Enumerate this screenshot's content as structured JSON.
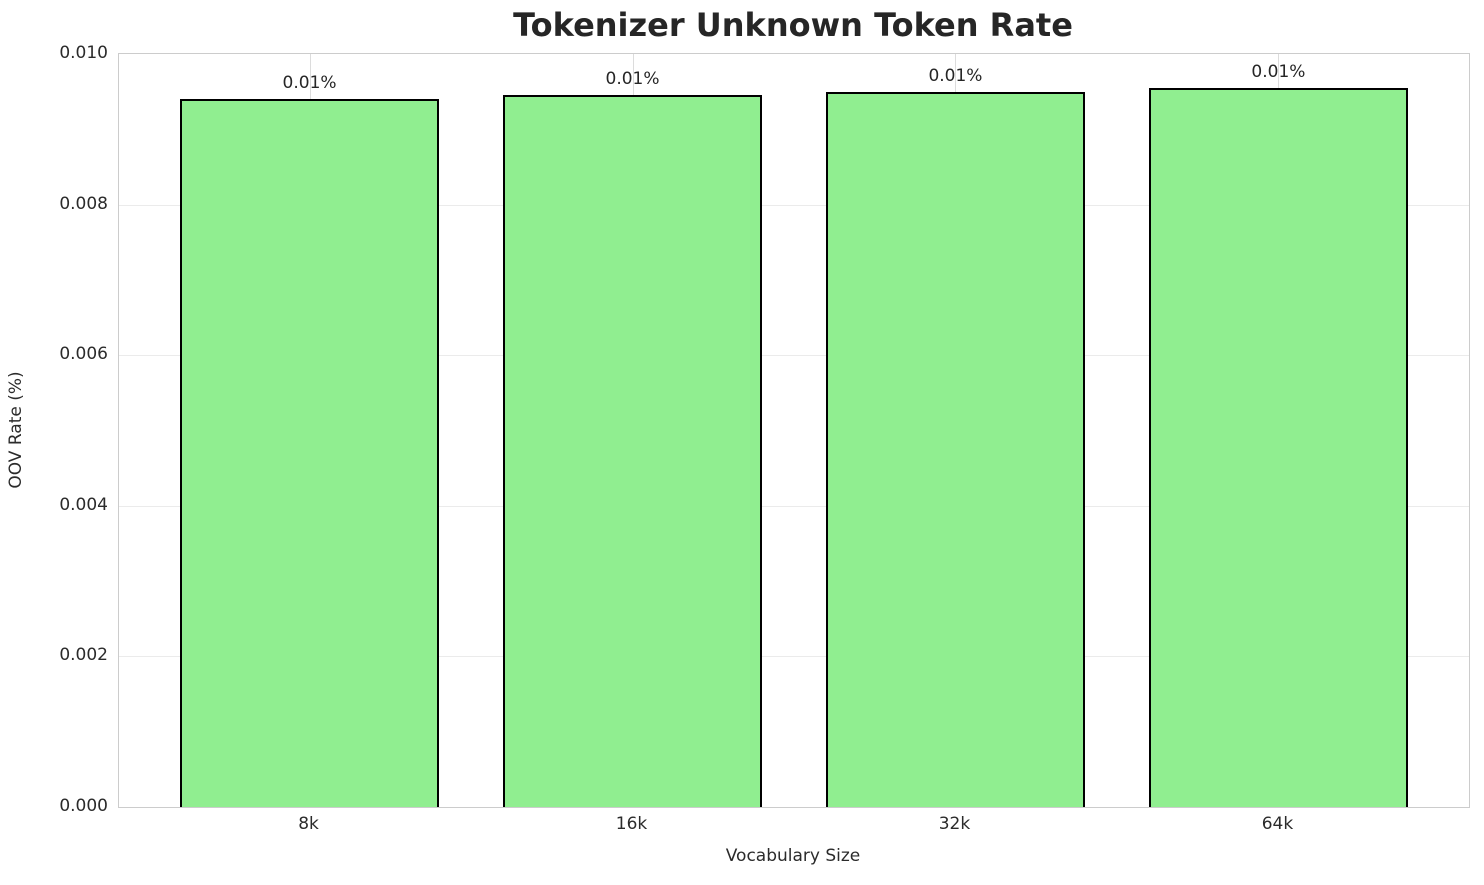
{
  "chart_data": {
    "type": "bar",
    "title": "Tokenizer Unknown Token Rate",
    "xlabel": "Vocabulary Size",
    "ylabel": "OOV Rate (%)",
    "categories": [
      "8k",
      "16k",
      "32k",
      "64k"
    ],
    "values": [
      0.0094,
      0.00945,
      0.0095,
      0.00955
    ],
    "bar_labels": [
      "0.01%",
      "0.01%",
      "0.01%",
      "0.01%"
    ],
    "ylim": [
      0.0,
      0.01
    ],
    "yticks": [
      {
        "value": 0.0,
        "label": "0.000"
      },
      {
        "value": 0.002,
        "label": "0.002"
      },
      {
        "value": 0.004,
        "label": "0.004"
      },
      {
        "value": 0.006,
        "label": "0.006"
      },
      {
        "value": 0.008,
        "label": "0.008"
      },
      {
        "value": 0.01,
        "label": "0.010"
      }
    ],
    "grid": true,
    "legend": "none",
    "bar_color": "#90EE90",
    "bar_edge_color": "#000000",
    "grid_color_horizontal": "#ebebeb",
    "grid_color_vertical": "#dcdcdc",
    "spine_color": "#cccccc",
    "text_color": "#262626"
  }
}
